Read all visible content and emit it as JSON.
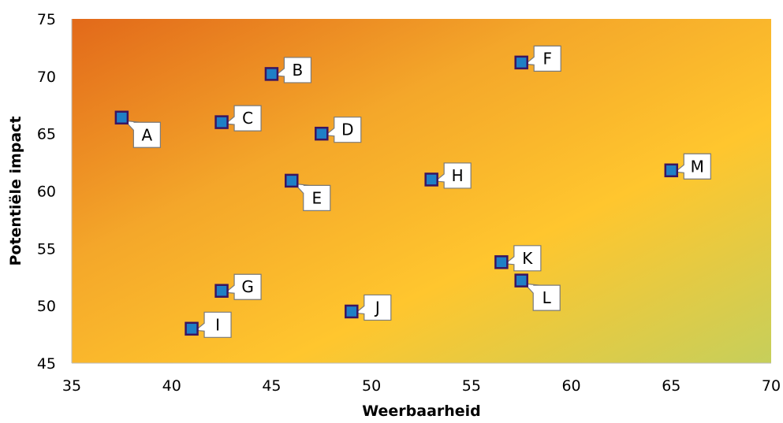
{
  "chart_data": {
    "type": "scatter",
    "xlabel": "Weerbaarheid",
    "ylabel": "Potentiële impact",
    "xlim": [
      35,
      70
    ],
    "ylim": [
      45,
      75
    ],
    "xticks": [
      35,
      40,
      45,
      50,
      55,
      60,
      65,
      70
    ],
    "yticks": [
      45,
      50,
      55,
      60,
      65,
      70,
      75
    ],
    "grid": false,
    "background": "orange-to-yellow-green gradient",
    "colors": {
      "gradient_top_left": "#e2691a",
      "gradient_mid": "#f4a72a",
      "gradient_bright": "#ffc62e",
      "gradient_bottom_right": "#c6cf5b",
      "marker_fill": "#1f7fc6",
      "marker_border": "#3b1560"
    },
    "points": [
      {
        "label": "A",
        "x": 37.5,
        "y": 66.4,
        "label_pos": "lower-right"
      },
      {
        "label": "B",
        "x": 45.0,
        "y": 70.2,
        "label_pos": "right"
      },
      {
        "label": "C",
        "x": 42.5,
        "y": 66.0,
        "label_pos": "right"
      },
      {
        "label": "D",
        "x": 47.5,
        "y": 65.0,
        "label_pos": "right"
      },
      {
        "label": "E",
        "x": 46.0,
        "y": 60.9,
        "label_pos": "lower-right"
      },
      {
        "label": "F",
        "x": 57.5,
        "y": 71.2,
        "label_pos": "right"
      },
      {
        "label": "G",
        "x": 42.5,
        "y": 51.3,
        "label_pos": "right"
      },
      {
        "label": "H",
        "x": 53.0,
        "y": 61.0,
        "label_pos": "right"
      },
      {
        "label": "I",
        "x": 41.0,
        "y": 48.0,
        "label_pos": "right"
      },
      {
        "label": "J",
        "x": 49.0,
        "y": 49.5,
        "label_pos": "right"
      },
      {
        "label": "K",
        "x": 56.5,
        "y": 53.8,
        "label_pos": "right"
      },
      {
        "label": "L",
        "x": 57.5,
        "y": 52.2,
        "label_pos": "lower-right"
      },
      {
        "label": "M",
        "x": 65.0,
        "y": 61.8,
        "label_pos": "right"
      }
    ]
  }
}
